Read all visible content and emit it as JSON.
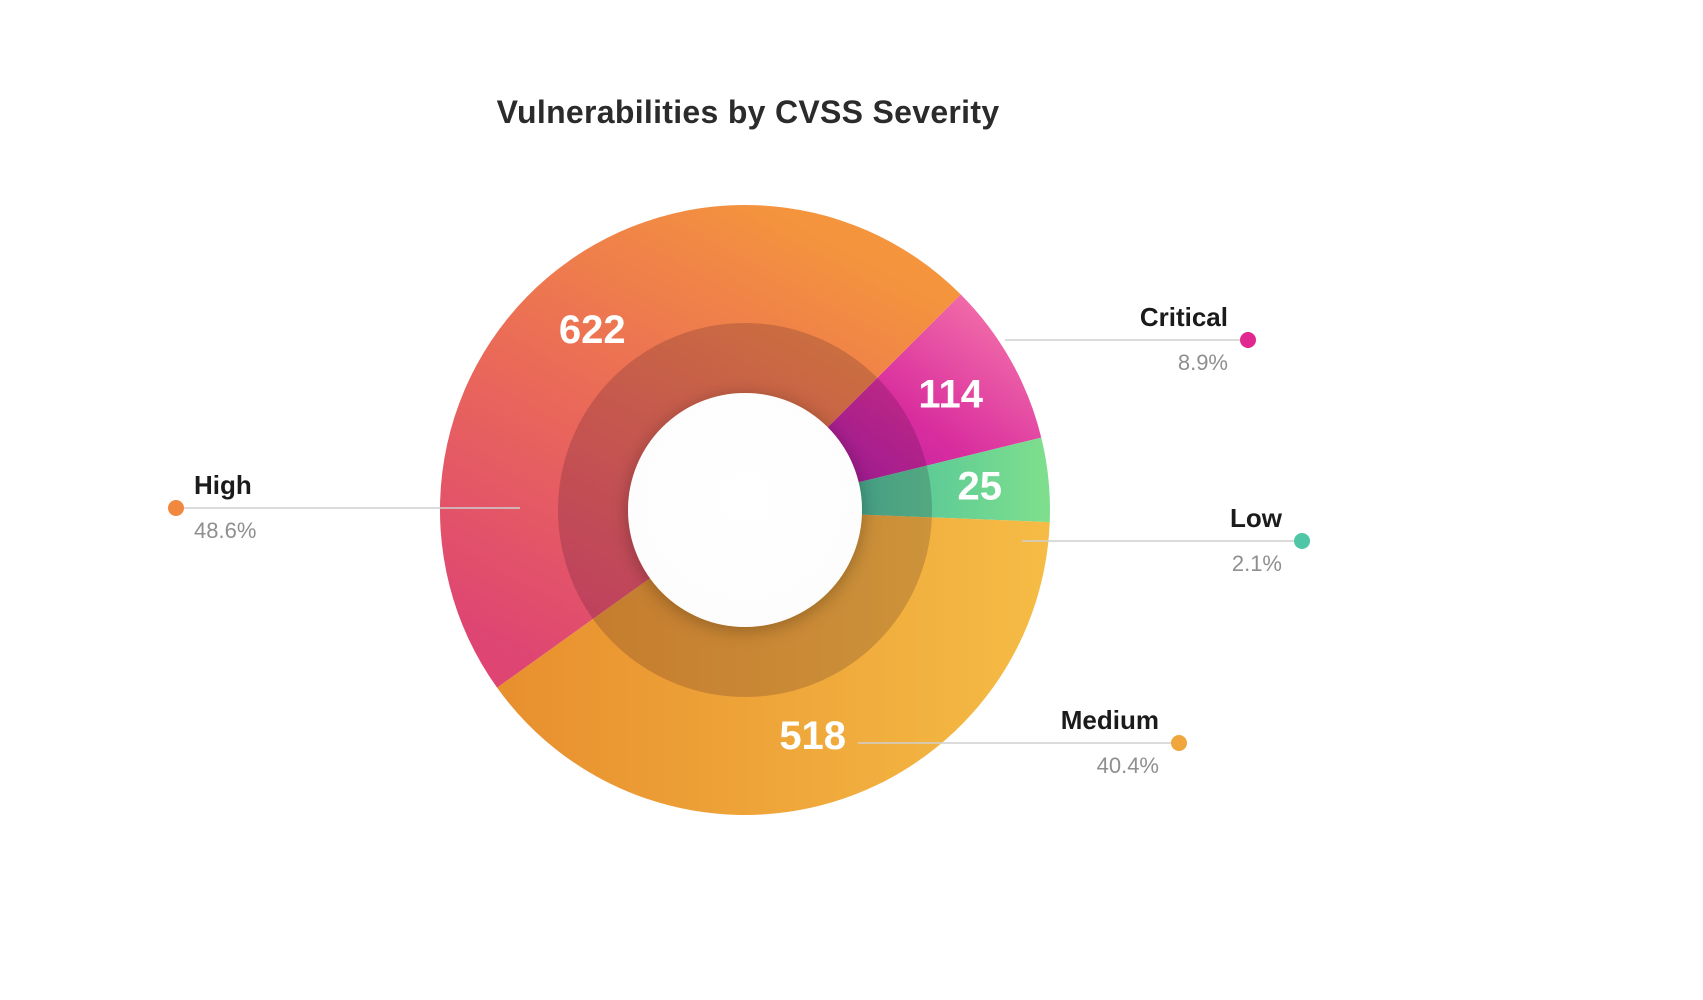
{
  "page": {
    "background": "#ffffff"
  },
  "chart_data": {
    "type": "pie",
    "subtype": "donut",
    "title": "Vulnerabilities by CVSS Severity",
    "slices": [
      {
        "label": "Critical",
        "value": 114,
        "percent_label": "8.9%",
        "gradient": [
          "#f981ac",
          "#d92d9e",
          "#9e14b4"
        ],
        "dot_color": "#e1268f"
      },
      {
        "label": "Low",
        "value": 25,
        "percent_label": "2.1%",
        "gradient": [
          "#2eafa3",
          "#7fdf8d"
        ],
        "dot_color": "#4fc7a6"
      },
      {
        "label": "Medium",
        "value": 518,
        "percent_label": "40.4%",
        "gradient": [
          "#e88f2e",
          "#f5bc45"
        ],
        "dot_color": "#f0a63d"
      },
      {
        "label": "High",
        "value": 622,
        "percent_label": "48.6%",
        "gradient": [
          "#f4953d",
          "#ea6a58",
          "#de4573"
        ],
        "dot_color": "#f1883f"
      }
    ],
    "layout_hints": {
      "start_angle_deg": 45,
      "clockwise": true,
      "min_slice_display_angle_deg": 16,
      "inner_hole_ratio": 0.38,
      "value_labels": "inside",
      "category_labels": "outside-with-leader-lines",
      "legend": "none",
      "grid": "off"
    }
  }
}
